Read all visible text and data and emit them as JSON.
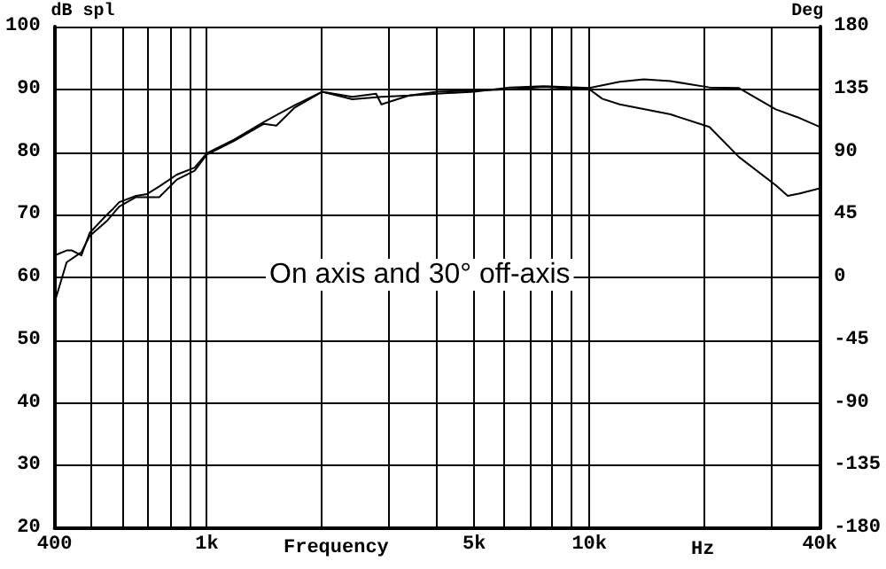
{
  "chart_data": {
    "type": "line",
    "xlabel": "Frequency",
    "ylabel": "dB spl",
    "y2label": "Deg",
    "annotations": [
      "On axis and 30° off-axis",
      "Hz"
    ],
    "log": "x",
    "grid": true,
    "marker": "none",
    "line_style": "solid",
    "xlim": [
      400,
      40000
    ],
    "ylim": [
      20,
      100
    ],
    "y2lim": [
      -180,
      180
    ],
    "xticks": [
      {
        "value": 400,
        "label": "400"
      },
      {
        "value": 500,
        "label": null
      },
      {
        "value": 600,
        "label": null
      },
      {
        "value": 700,
        "label": null
      },
      {
        "value": 800,
        "label": null
      },
      {
        "value": 900,
        "label": null
      },
      {
        "value": 1000,
        "label": "1k"
      },
      {
        "value": 2000,
        "label": null
      },
      {
        "value": 3000,
        "label": null
      },
      {
        "value": 4000,
        "label": null
      },
      {
        "value": 5000,
        "label": "5k"
      },
      {
        "value": 6000,
        "label": null
      },
      {
        "value": 7000,
        "label": null
      },
      {
        "value": 8000,
        "label": null
      },
      {
        "value": 9000,
        "label": null
      },
      {
        "value": 10000,
        "label": "10k"
      },
      {
        "value": 20000,
        "label": null
      },
      {
        "value": 30000,
        "label": null
      },
      {
        "value": 40000,
        "label": "40k"
      }
    ],
    "yticks": [
      20,
      30,
      40,
      50,
      60,
      70,
      80,
      90,
      100
    ],
    "y2ticks": [
      -180,
      -135,
      -90,
      -45,
      0,
      45,
      90,
      135,
      180
    ],
    "series": [
      {
        "color": "#000000",
        "x": [
          400,
          430,
          444,
          470,
          494,
          548,
          566,
          590,
          653,
          698,
          751,
          835,
          929,
          1000,
          1180,
          1410,
          1690,
          2000,
          2400,
          2770,
          2860,
          3380,
          4000,
          5000,
          6200,
          7600,
          10000,
          12000,
          13900,
          16300,
          20600,
          24600,
          30700,
          35500,
          40000
        ],
        "values": [
          63.5,
          64.3,
          64.3,
          63.5,
          67.1,
          70,
          70.8,
          72,
          73,
          73.3,
          74.5,
          76.4,
          77.5,
          79.8,
          82,
          84.8,
          87.4,
          89.6,
          88.8,
          89.3,
          87.6,
          89,
          89.3,
          89.6,
          90.3,
          90.5,
          90.2,
          91.2,
          91.6,
          91.3,
          90.3,
          90.2,
          86.8,
          85.4,
          84
        ]
      },
      {
        "color": "#000000",
        "x": [
          400,
          430,
          470,
          494,
          548,
          590,
          653,
          751,
          835,
          929,
          1000,
          1180,
          1410,
          1520,
          1690,
          2000,
          2400,
          2860,
          3380,
          4000,
          5000,
          6200,
          7600,
          10000,
          10800,
          12000,
          16300,
          20600,
          24600,
          30700,
          33000,
          35500,
          40000
        ],
        "values": [
          56,
          62.4,
          64,
          66.6,
          69,
          71.3,
          72.8,
          72.8,
          75.6,
          77,
          79.6,
          81.8,
          84.5,
          84.2,
          87,
          89.6,
          88.4,
          88.8,
          89,
          89.6,
          89.8,
          90,
          90.4,
          90,
          88.5,
          87.6,
          86,
          84,
          79.2,
          74.7,
          73,
          73.4,
          74.2
        ]
      }
    ]
  }
}
